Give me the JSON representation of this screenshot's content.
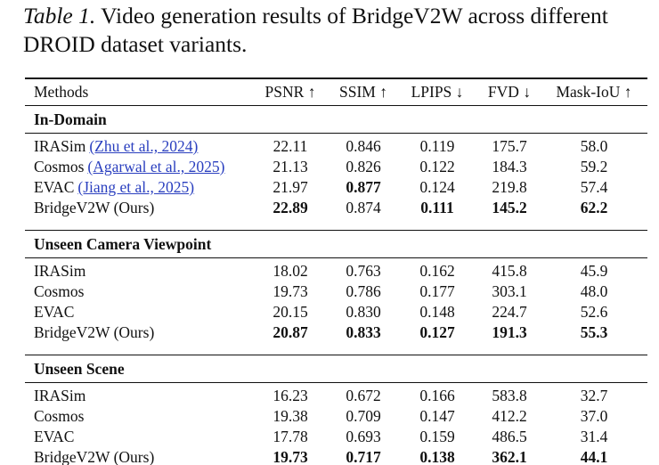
{
  "caption": {
    "label": "Table 1.",
    "text": "Video generation results of BridgeV2W across different DROID dataset variants."
  },
  "table": {
    "header": [
      "Methods",
      "PSNR ↑",
      "SSIM ↑",
      "LPIPS ↓",
      "FVD ↓",
      "Mask-IoU ↑"
    ],
    "sections": [
      {
        "title": "In-Domain",
        "rows": [
          {
            "method": "IRASim",
            "citation": "(Zhu et al., 2024)",
            "cells": [
              "22.11",
              "0.846",
              "0.119",
              "175.7",
              "58.0"
            ],
            "bold": [
              false,
              false,
              false,
              false,
              false
            ]
          },
          {
            "method": "Cosmos",
            "citation": "(Agarwal et al., 2025)",
            "cells": [
              "21.13",
              "0.826",
              "0.122",
              "184.3",
              "59.2"
            ],
            "bold": [
              false,
              false,
              false,
              false,
              false
            ]
          },
          {
            "method": "EVAC",
            "citation": "(Jiang et al., 2025)",
            "cells": [
              "21.97",
              "0.877",
              "0.124",
              "219.8",
              "57.4"
            ],
            "bold": [
              false,
              true,
              false,
              false,
              false
            ]
          },
          {
            "method": "BridgeV2W (Ours)",
            "cells": [
              "22.89",
              "0.874",
              "0.111",
              "145.2",
              "62.2"
            ],
            "bold": [
              true,
              false,
              true,
              true,
              true
            ]
          }
        ]
      },
      {
        "title": "Unseen Camera Viewpoint",
        "rows": [
          {
            "method": "IRASim",
            "cells": [
              "18.02",
              "0.763",
              "0.162",
              "415.8",
              "45.9"
            ],
            "bold": [
              false,
              false,
              false,
              false,
              false
            ]
          },
          {
            "method": "Cosmos",
            "cells": [
              "19.73",
              "0.786",
              "0.177",
              "303.1",
              "48.0"
            ],
            "bold": [
              false,
              false,
              false,
              false,
              false
            ]
          },
          {
            "method": "EVAC",
            "cells": [
              "20.15",
              "0.830",
              "0.148",
              "224.7",
              "52.6"
            ],
            "bold": [
              false,
              false,
              false,
              false,
              false
            ]
          },
          {
            "method": "BridgeV2W (Ours)",
            "cells": [
              "20.87",
              "0.833",
              "0.127",
              "191.3",
              "55.3"
            ],
            "bold": [
              true,
              true,
              true,
              true,
              true
            ]
          }
        ]
      },
      {
        "title": "Unseen Scene",
        "rows": [
          {
            "method": "IRASim",
            "cells": [
              "16.23",
              "0.672",
              "0.166",
              "583.8",
              "32.7"
            ],
            "bold": [
              false,
              false,
              false,
              false,
              false
            ]
          },
          {
            "method": "Cosmos",
            "cells": [
              "19.38",
              "0.709",
              "0.147",
              "412.2",
              "37.0"
            ],
            "bold": [
              false,
              false,
              false,
              false,
              false
            ]
          },
          {
            "method": "EVAC",
            "cells": [
              "17.78",
              "0.693",
              "0.159",
              "486.5",
              "31.4"
            ],
            "bold": [
              false,
              false,
              false,
              false,
              false
            ]
          },
          {
            "method": "BridgeV2W (Ours)",
            "cells": [
              "19.73",
              "0.717",
              "0.138",
              "362.1",
              "44.1"
            ],
            "bold": [
              true,
              true,
              true,
              true,
              true
            ]
          }
        ]
      }
    ]
  }
}
